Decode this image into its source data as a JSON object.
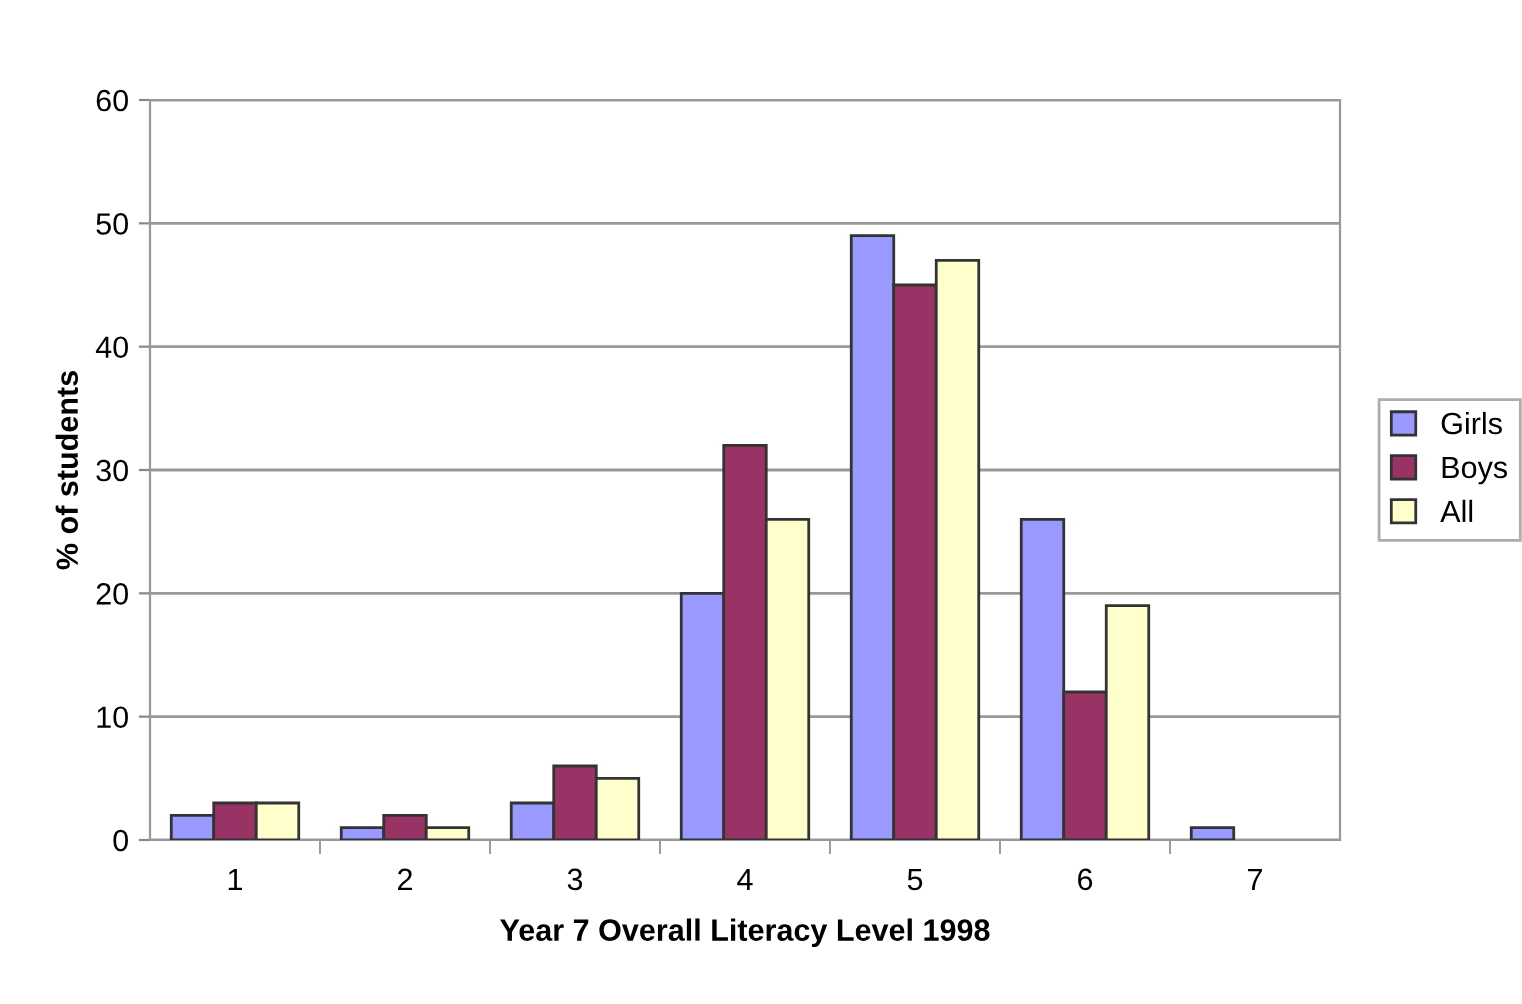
{
  "chart_data": {
    "type": "bar",
    "xlabel": "Year 7 Overall Literacy Level 1998",
    "ylabel": "% of students",
    "categories": [
      "1",
      "2",
      "3",
      "4",
      "5",
      "6",
      "7"
    ],
    "series": [
      {
        "name": "Girls",
        "color": "#9999ff",
        "values": [
          2,
          1,
          3,
          20,
          49,
          26,
          1
        ]
      },
      {
        "name": "Boys",
        "color": "#993366",
        "values": [
          3,
          2,
          6,
          32,
          45,
          12,
          null
        ]
      },
      {
        "name": "All",
        "color": "#ffffcc",
        "values": [
          3,
          1,
          5,
          26,
          47,
          19,
          null
        ]
      }
    ],
    "ylim": [
      0,
      60
    ],
    "yticks": [
      0,
      10,
      20,
      30,
      40,
      50,
      60
    ],
    "grid": "y",
    "legend": "right"
  }
}
